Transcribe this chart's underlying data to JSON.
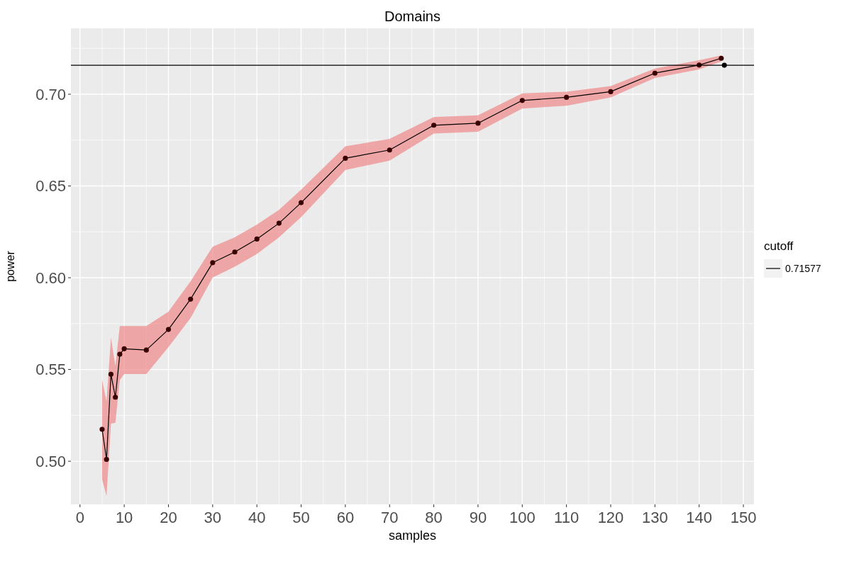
{
  "chart_data": {
    "type": "line",
    "title": "Domains",
    "xlabel": "samples",
    "ylabel": "power",
    "legend_title": "cutoff",
    "legend": "right",
    "grid": true,
    "marker": "circle",
    "line_style": "solid",
    "xlim": [
      -2.05,
      152.4
    ],
    "xticks": [
      0,
      10,
      20,
      30,
      40,
      50,
      60,
      70,
      80,
      90,
      100,
      110,
      120,
      130,
      140,
      150
    ],
    "ylim": [
      0.4765,
      0.7359
    ],
    "yticks": [
      {
        "value": 0.5,
        "label": "0.50"
      },
      {
        "value": 0.55,
        "label": "0.55"
      },
      {
        "value": 0.6,
        "label": "0.60"
      },
      {
        "value": 0.65,
        "label": "0.65"
      },
      {
        "value": 0.7,
        "label": "0.70"
      }
    ],
    "ref_lines": [
      {
        "axis": "y",
        "value": 0.71577,
        "label": "0.71577",
        "color": "#000000"
      }
    ],
    "series": [
      {
        "color": "#3a0000",
        "x": [
          5,
          6,
          7,
          8,
          9,
          10,
          15,
          20,
          25,
          30,
          35,
          40,
          45,
          50,
          60,
          70,
          80,
          90,
          100,
          110,
          120,
          130,
          140,
          145
        ],
        "values": [
          0.5174,
          0.501,
          0.5474,
          0.5349,
          0.5583,
          0.5613,
          0.5606,
          0.5718,
          0.5883,
          0.6082,
          0.614,
          0.6211,
          0.6297,
          0.6409,
          0.6651,
          0.6696,
          0.6831,
          0.6842,
          0.6966,
          0.6983,
          0.7014,
          0.7115,
          0.7159,
          0.7196
        ],
        "lower": [
          0.4901,
          0.4811,
          0.5205,
          0.521,
          0.5442,
          0.5475,
          0.5475,
          0.5622,
          0.578,
          0.6001,
          0.606,
          0.613,
          0.622,
          0.633,
          0.6587,
          0.6638,
          0.6786,
          0.6795,
          0.6922,
          0.6937,
          0.6983,
          0.7089,
          0.7135,
          0.7179
        ],
        "upper": [
          0.5442,
          0.5326,
          0.5673,
          0.5519,
          0.5737,
          0.5737,
          0.5737,
          0.5815,
          0.598,
          0.6169,
          0.622,
          0.629,
          0.637,
          0.648,
          0.6716,
          0.6757,
          0.6876,
          0.6885,
          0.7005,
          0.7014,
          0.7044,
          0.714,
          0.7185,
          0.7211
        ]
      },
      {
        "type": "scatter",
        "color": "#000000",
        "x": [
          145.7
        ],
        "values": [
          0.7158
        ]
      }
    ]
  }
}
